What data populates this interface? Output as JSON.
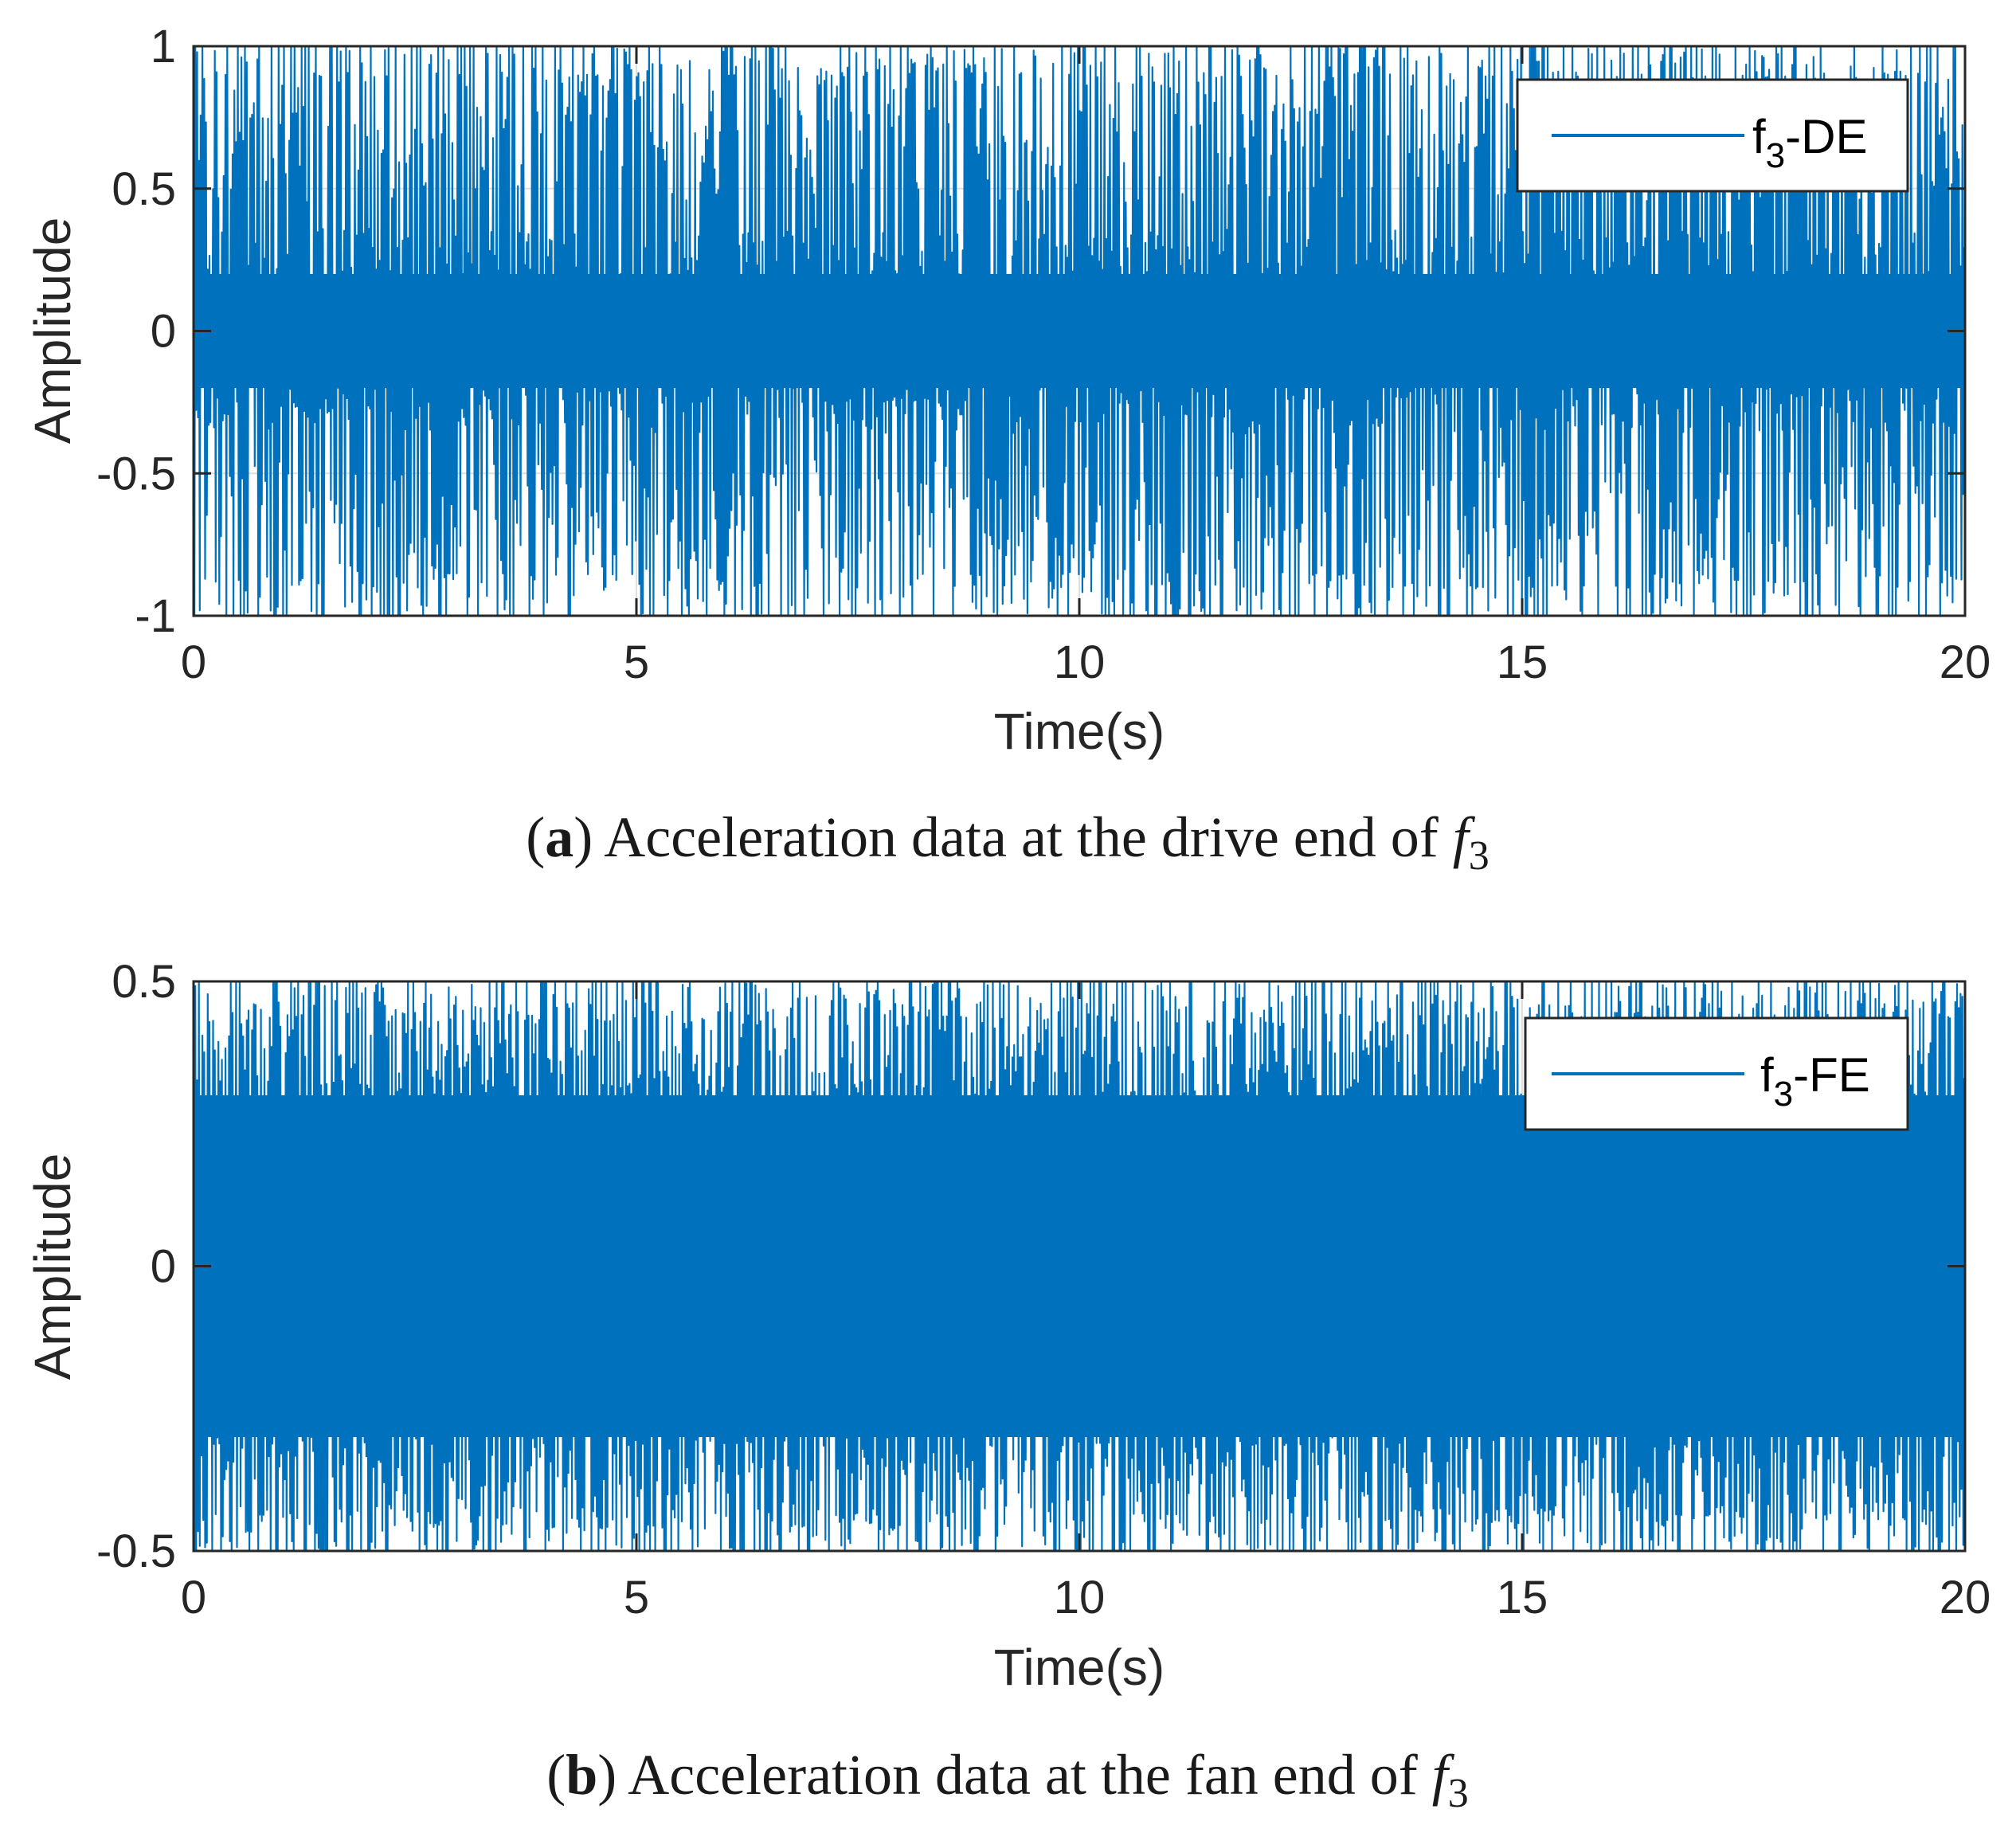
{
  "figure": {
    "captions": [
      {
        "letter": "a",
        "text": "Acceleration data at the drive end of ",
        "symbol": "f",
        "subscript": "3"
      },
      {
        "letter": "b",
        "text": "Acceleration data at the fan end of ",
        "symbol": "f",
        "subscript": "3"
      }
    ]
  },
  "chart_data": [
    {
      "type": "line",
      "title": "",
      "xlabel": "Time(s)",
      "ylabel": "Amplitude",
      "xlim": [
        0,
        20
      ],
      "ylim": [
        -1,
        1
      ],
      "xticks": [
        0,
        5,
        10,
        15,
        20
      ],
      "xtick_labels": [
        "0",
        "5",
        "10",
        "15",
        "20"
      ],
      "yticks": [
        -1,
        -0.5,
        0,
        0.5,
        1
      ],
      "ytick_labels": [
        "-1",
        "-0.5",
        "0",
        "0.5",
        "1"
      ],
      "grid": true,
      "legend": {
        "position": "top-right",
        "entries": [
          {
            "base": "f",
            "sub": "3",
            "suffix": "-DE"
          }
        ]
      },
      "series": [
        {
          "name": "f3-DE",
          "color": "#0072BD",
          "description": "Dense vibration signal over 0–20 s, clipped at ±1",
          "t_range": [
            0,
            20
          ],
          "amplitude_range": [
            -1,
            1
          ],
          "dense_core": [
            -0.2,
            0.2
          ],
          "samples": 2000
        }
      ]
    },
    {
      "type": "line",
      "title": "",
      "xlabel": "Time(s)",
      "ylabel": "Amplitude",
      "xlim": [
        0,
        20
      ],
      "ylim": [
        -0.5,
        0.5
      ],
      "xticks": [
        0,
        5,
        10,
        15,
        20
      ],
      "xtick_labels": [
        "0",
        "5",
        "10",
        "15",
        "20"
      ],
      "yticks": [
        -0.5,
        0,
        0.5
      ],
      "ytick_labels": [
        "-0.5",
        "0",
        "0.5"
      ],
      "grid": true,
      "legend": {
        "position": "top-right",
        "entries": [
          {
            "base": "f",
            "sub": "3",
            "suffix": "-FE"
          }
        ]
      },
      "series": [
        {
          "name": "f3-FE",
          "color": "#0072BD",
          "description": "Dense vibration signal over 0–20 s, clipped at ±0.5",
          "t_range": [
            0,
            20
          ],
          "amplitude_range": [
            -0.5,
            0.5
          ],
          "dense_core": [
            -0.3,
            0.3
          ],
          "samples": 2000
        }
      ]
    }
  ]
}
